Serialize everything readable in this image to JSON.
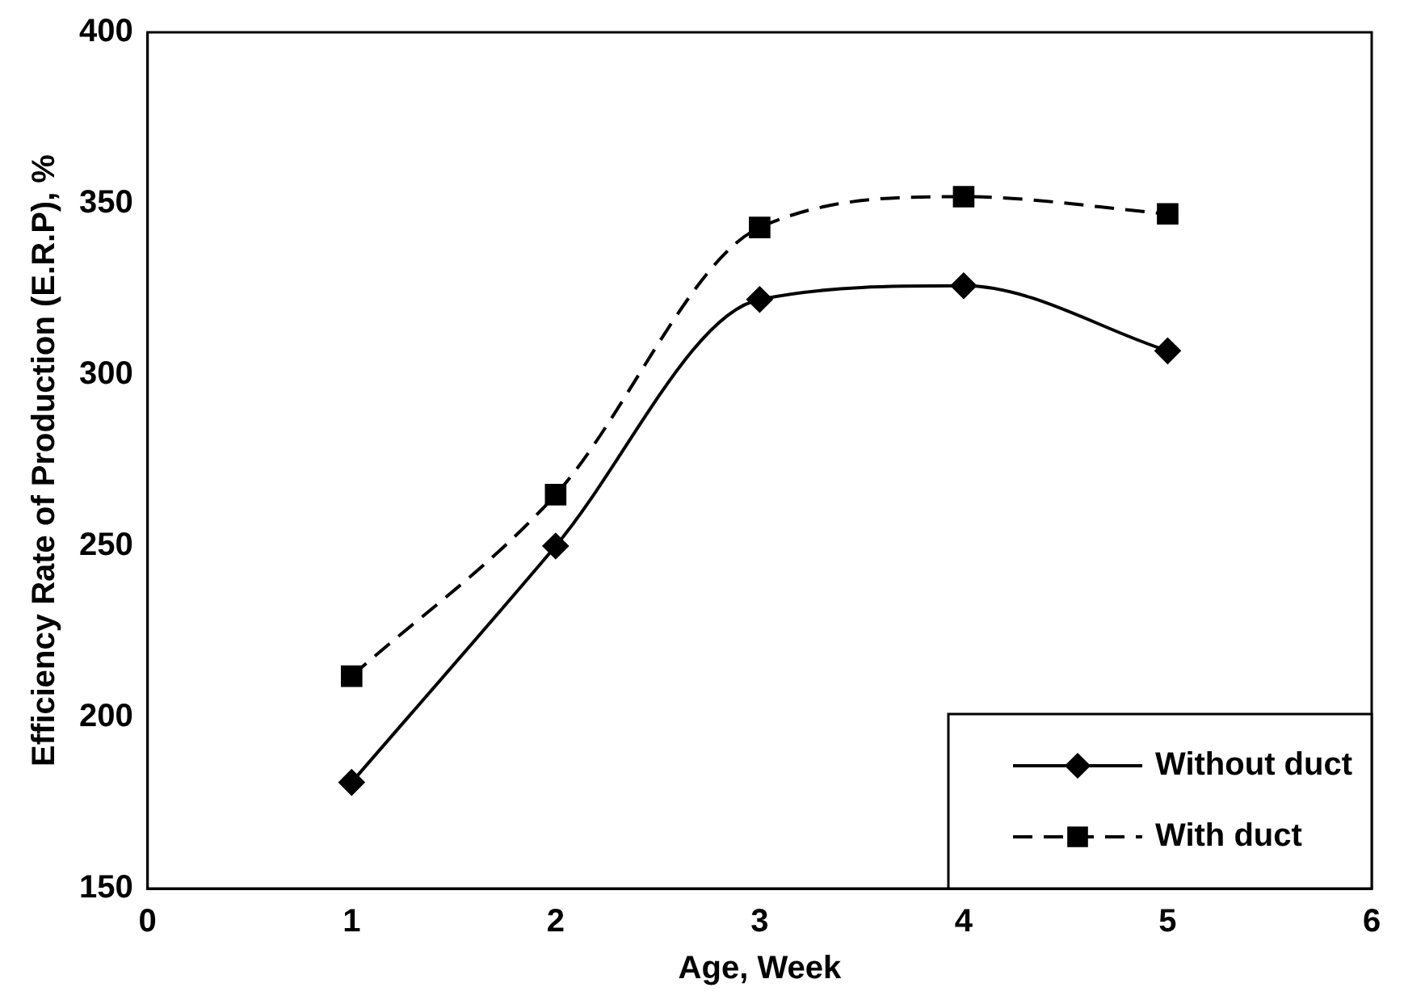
{
  "chart_data": {
    "type": "line",
    "xlabel": "Age, Week",
    "ylabel": "Efficiency Rate of Production (E.R.P), %",
    "x": [
      1,
      2,
      3,
      4,
      5
    ],
    "xlim": [
      0,
      6
    ],
    "xticks": [
      0,
      1,
      2,
      3,
      4,
      5,
      6
    ],
    "ylim": [
      150,
      400
    ],
    "yticks": [
      150,
      200,
      250,
      300,
      350,
      400
    ],
    "grid": false,
    "legend": "bottom right",
    "series": [
      {
        "name": "Without duct",
        "color": "#000000",
        "values": [
          181,
          250,
          322,
          326,
          307
        ],
        "marker": "diamond",
        "line_style": "solid"
      },
      {
        "name": "With duct",
        "color": "#000000",
        "values": [
          212,
          265,
          343,
          352,
          347
        ],
        "marker": "square",
        "line_style": "dashed"
      }
    ]
  }
}
